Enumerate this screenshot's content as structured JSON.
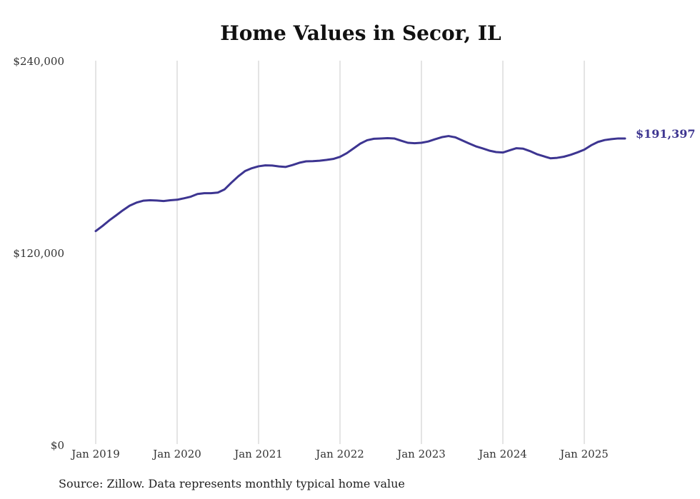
{
  "chart_data": {
    "type": "line",
    "title": "Home Values in Secor, IL",
    "xlabel": "",
    "ylabel": "",
    "ylim": [
      0,
      240000
    ],
    "yticks": [
      {
        "value": 0,
        "label": "$0"
      },
      {
        "value": 120000,
        "label": "$120,000"
      },
      {
        "value": 240000,
        "label": "$240,000"
      }
    ],
    "xticks": [
      {
        "value": "2019-01",
        "label": "Jan 2019"
      },
      {
        "value": "2020-01",
        "label": "Jan 2020"
      },
      {
        "value": "2021-01",
        "label": "Jan 2021"
      },
      {
        "value": "2022-01",
        "label": "Jan 2022"
      },
      {
        "value": "2023-01",
        "label": "Jan 2023"
      },
      {
        "value": "2024-01",
        "label": "Jan 2024"
      },
      {
        "value": "2025-01",
        "label": "Jan 2025"
      }
    ],
    "xlim": [
      "2019-01",
      "2025-07"
    ],
    "grid": "vertical",
    "line_color": "#3d3591",
    "end_label": "$191,397",
    "series": [
      {
        "x": [
          "2019-01",
          "2019-02",
          "2019-03",
          "2019-04",
          "2019-05",
          "2019-06",
          "2019-07",
          "2019-08",
          "2019-09",
          "2019-10",
          "2019-11",
          "2019-12",
          "2020-01",
          "2020-02",
          "2020-03",
          "2020-04",
          "2020-05",
          "2020-06",
          "2020-07",
          "2020-08",
          "2020-09",
          "2020-10",
          "2020-11",
          "2020-12",
          "2021-01",
          "2021-02",
          "2021-03",
          "2021-04",
          "2021-05",
          "2021-06",
          "2021-07",
          "2021-08",
          "2021-09",
          "2021-10",
          "2021-11",
          "2021-12",
          "2022-01",
          "2022-02",
          "2022-03",
          "2022-04",
          "2022-05",
          "2022-06",
          "2022-07",
          "2022-08",
          "2022-09",
          "2022-10",
          "2022-11",
          "2022-12",
          "2023-01",
          "2023-02",
          "2023-03",
          "2023-04",
          "2023-05",
          "2023-06",
          "2023-07",
          "2023-08",
          "2023-09",
          "2023-10",
          "2023-11",
          "2023-12",
          "2024-01",
          "2024-02",
          "2024-03",
          "2024-04",
          "2024-05",
          "2024-06",
          "2024-07",
          "2024-08",
          "2024-09",
          "2024-10",
          "2024-11",
          "2024-12",
          "2025-01",
          "2025-02",
          "2025-03",
          "2025-04",
          "2025-05",
          "2025-06",
          "2025-07"
        ],
        "values": [
          133500,
          136700,
          140200,
          143300,
          146500,
          149400,
          151300,
          152500,
          152800,
          152600,
          152300,
          152800,
          153100,
          154000,
          155000,
          156700,
          157200,
          157200,
          157600,
          159600,
          163800,
          167700,
          171000,
          172800,
          174000,
          174600,
          174500,
          173900,
          173600,
          174800,
          176200,
          177100,
          177200,
          177500,
          178000,
          178600,
          179900,
          182200,
          185200,
          188200,
          190300,
          191200,
          191400,
          191600,
          191400,
          190000,
          188700,
          188400,
          188700,
          189500,
          190900,
          192200,
          192900,
          192100,
          190200,
          188300,
          186500,
          185200,
          183800,
          182900,
          182600,
          184000,
          185300,
          185000,
          183500,
          181600,
          180300,
          179000,
          179300,
          180000,
          181200,
          182700,
          184400,
          187100,
          189200,
          190400,
          191000,
          191400,
          191397
        ]
      }
    ]
  },
  "footer": {
    "source_note": "Source: Zillow. Data represents monthly typical home value"
  }
}
